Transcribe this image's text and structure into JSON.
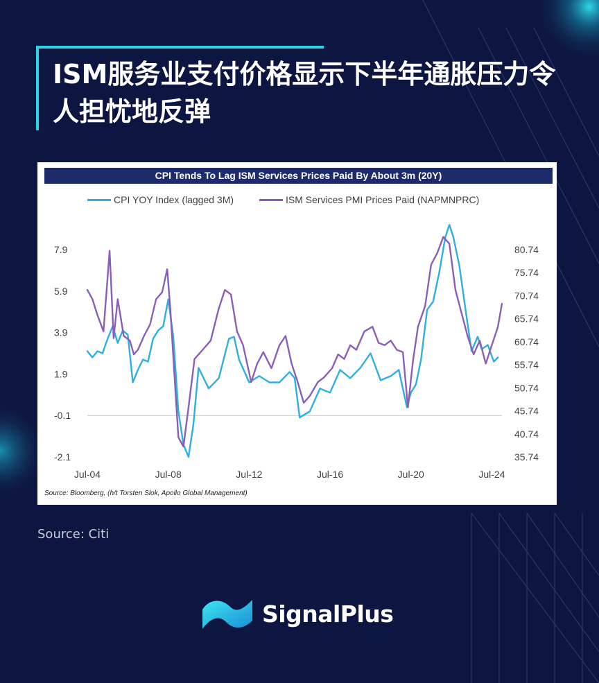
{
  "page": {
    "title": "ISM服务业支付价格显示下半年通胀压力令人担忧地反弹",
    "source_note": "Source: Citi",
    "brand_name": "SignalPlus",
    "colors": {
      "background": "#0d1640",
      "accent": "#2ad4e6",
      "title_bar": "#1d2b6b"
    }
  },
  "chart_data": {
    "type": "line",
    "title": "CPI Tends To Lag ISM Services Prices Paid By About 3m (20Y)",
    "source": "Source: Bloomberg, (h/t Torsten Slok, Apollo Global Management)",
    "x_tick_labels": [
      "Jul-04",
      "Jul-08",
      "Jul-12",
      "Jul-16",
      "Jul-20",
      "Jul-24"
    ],
    "x_tick_years": [
      2004.5,
      2008.5,
      2012.5,
      2016.5,
      2020.5,
      2024.5
    ],
    "xlim": [
      2004.5,
      2025.0
    ],
    "left_axis": {
      "ticks": [
        "7.9",
        "5.9",
        "3.9",
        "1.9",
        "-0.1",
        "-2.1"
      ],
      "ylim": [
        -2.1,
        7.9
      ]
    },
    "right_axis": {
      "ticks": [
        "80.74",
        "75.74",
        "70.74",
        "65.74",
        "60.74",
        "55.74",
        "50.74",
        "45.74",
        "40.74",
        "35.74"
      ],
      "ylim": [
        35.74,
        80.74
      ]
    },
    "zero_line": true,
    "legend_position": "top",
    "series": [
      {
        "name": "CPI YOY Index (lagged 3M)",
        "axis": "left",
        "color": "#2eafe0",
        "x": [
          2004.5,
          2004.75,
          2005.0,
          2005.25,
          2005.5,
          2005.75,
          2006.0,
          2006.25,
          2006.5,
          2006.75,
          2007.0,
          2007.25,
          2007.5,
          2007.75,
          2008.0,
          2008.25,
          2008.5,
          2008.75,
          2009.0,
          2009.25,
          2009.5,
          2009.75,
          2010.0,
          2010.5,
          2011.0,
          2011.5,
          2011.75,
          2012.0,
          2012.5,
          2013.0,
          2013.5,
          2014.0,
          2014.5,
          2014.75,
          2015.0,
          2015.5,
          2016.0,
          2016.5,
          2017.0,
          2017.5,
          2018.0,
          2018.5,
          2019.0,
          2019.5,
          2019.9,
          2020.3,
          2020.5,
          2020.75,
          2021.0,
          2021.3,
          2021.6,
          2021.9,
          2022.2,
          2022.4,
          2022.6,
          2022.9,
          2023.2,
          2023.5,
          2023.8,
          2024.0,
          2024.3,
          2024.6,
          2024.8
        ],
        "values": [
          3.0,
          2.7,
          3.0,
          2.9,
          3.6,
          4.2,
          3.4,
          4.0,
          3.8,
          1.5,
          2.1,
          2.6,
          2.5,
          3.6,
          4.0,
          4.2,
          5.5,
          3.7,
          0.1,
          -1.5,
          -2.1,
          -0.5,
          2.2,
          1.2,
          1.7,
          3.6,
          3.7,
          2.6,
          1.5,
          1.8,
          1.5,
          1.5,
          2.0,
          1.7,
          -0.2,
          0.1,
          1.2,
          1.0,
          2.1,
          1.7,
          2.2,
          2.9,
          1.6,
          1.8,
          2.1,
          0.3,
          1.0,
          1.4,
          2.6,
          5.0,
          5.4,
          6.8,
          8.5,
          9.1,
          8.5,
          7.1,
          5.0,
          3.0,
          3.7,
          3.1,
          3.3,
          2.5,
          2.7
        ]
      },
      {
        "name": "ISM Services PMI Prices Paid (NAPMNPRC)",
        "axis": "right",
        "color": "#8a5fb8",
        "x": [
          2004.5,
          2004.75,
          2005.0,
          2005.3,
          2005.6,
          2005.8,
          2006.0,
          2006.3,
          2006.6,
          2006.8,
          2007.0,
          2007.3,
          2007.6,
          2007.9,
          2008.2,
          2008.45,
          2008.6,
          2008.8,
          2009.0,
          2009.25,
          2009.5,
          2009.8,
          2010.2,
          2010.6,
          2011.0,
          2011.3,
          2011.6,
          2011.9,
          2012.2,
          2012.6,
          2012.9,
          2013.2,
          2013.6,
          2014.0,
          2014.3,
          2014.6,
          2014.9,
          2015.2,
          2015.5,
          2015.9,
          2016.2,
          2016.6,
          2016.9,
          2017.2,
          2017.5,
          2017.8,
          2018.2,
          2018.6,
          2018.9,
          2019.2,
          2019.5,
          2019.8,
          2020.1,
          2020.35,
          2020.6,
          2020.85,
          2021.2,
          2021.5,
          2021.8,
          2022.1,
          2022.4,
          2022.7,
          2023.0,
          2023.3,
          2023.6,
          2023.9,
          2024.2,
          2024.5,
          2024.8,
          2025.0
        ],
        "values": [
          72.0,
          70.0,
          66.5,
          63.0,
          80.5,
          61.5,
          70.0,
          62.0,
          61.0,
          58.0,
          59.0,
          62.0,
          64.5,
          70.0,
          71.5,
          76.5,
          68.0,
          54.0,
          40.0,
          38.0,
          46.5,
          57.0,
          59.0,
          61.0,
          68.0,
          72.0,
          71.0,
          63.0,
          60.0,
          52.0,
          56.0,
          58.5,
          55.0,
          60.0,
          62.0,
          56.0,
          52.0,
          47.5,
          49.0,
          52.0,
          53.0,
          55.0,
          58.0,
          57.0,
          60.0,
          59.0,
          63.0,
          64.0,
          60.5,
          60.0,
          61.0,
          59.0,
          58.5,
          46.5,
          56.5,
          64.0,
          68.5,
          77.5,
          80.0,
          83.5,
          82.0,
          72.0,
          67.0,
          62.0,
          58.0,
          61.0,
          56.0,
          60.0,
          64.0,
          69.0
        ]
      }
    ]
  }
}
